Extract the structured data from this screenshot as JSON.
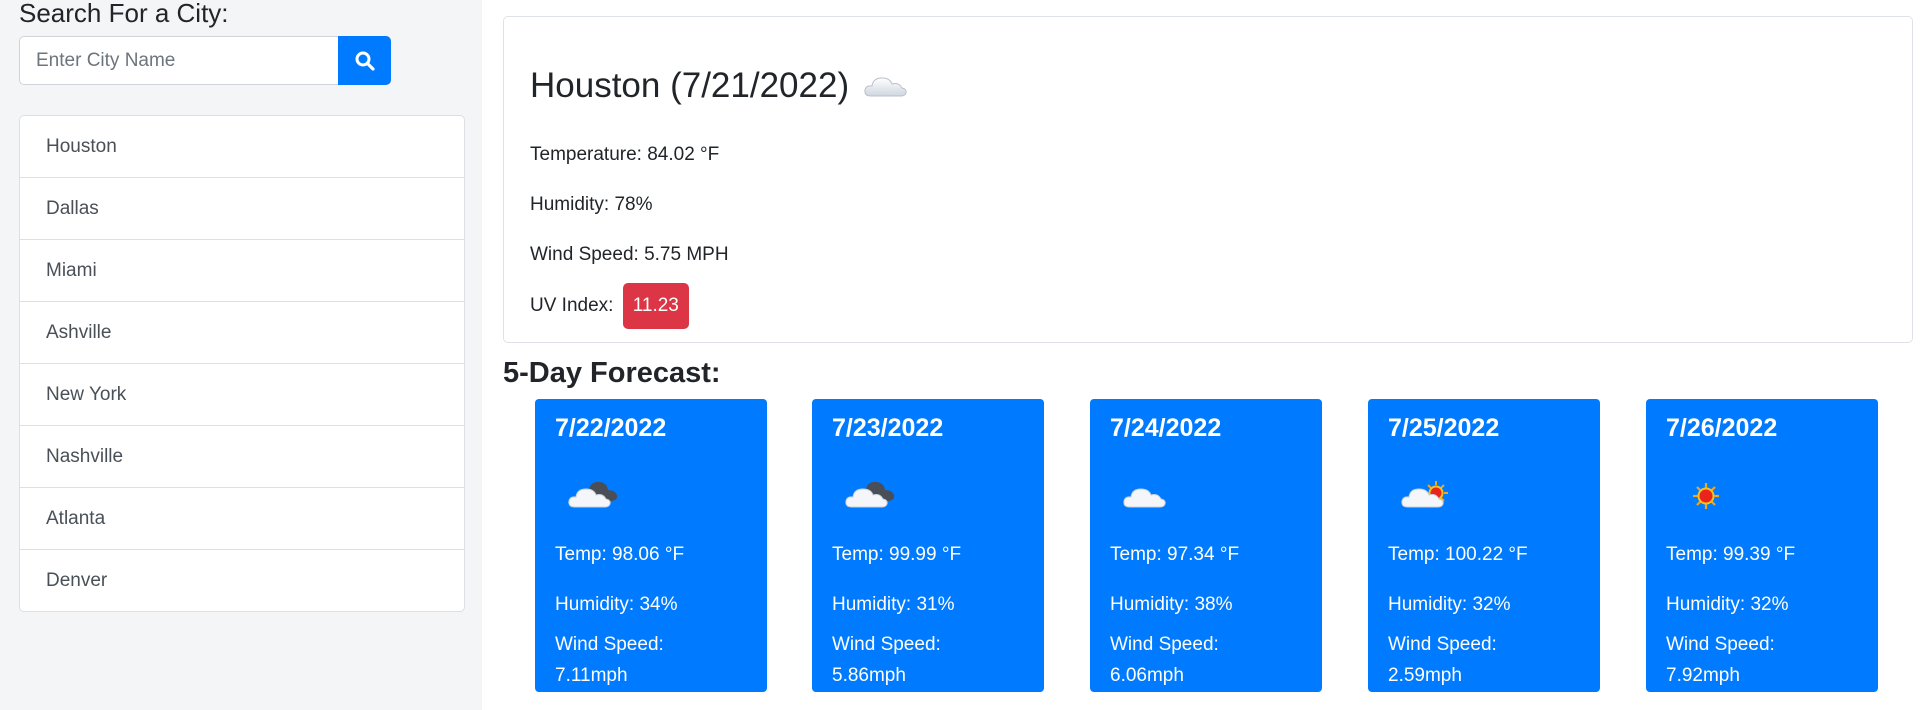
{
  "search": {
    "heading": "Search For a City:",
    "placeholder": "Enter City Name",
    "button_icon": "search-icon"
  },
  "cities": [
    "Houston",
    "Dallas",
    "Miami",
    "Ashville",
    "New York",
    "Nashville",
    "Atlanta",
    "Denver"
  ],
  "current": {
    "title": "Houston (7/21/2022)",
    "icon": "cloud-icon",
    "temperature": "Temperature: 84.02 °F",
    "humidity": "Humidity: 78%",
    "wind": "Wind Speed: 5.75 MPH",
    "uv_label": "UV Index:",
    "uv_value": "11.23",
    "uv_color": "#dc3545"
  },
  "forecast": {
    "heading": "5-Day Forecast:",
    "accent": "#007bff",
    "days": [
      {
        "date": "7/22/2022",
        "icon": "broken-clouds-icon",
        "temp": "Temp: 98.06 °F",
        "humidity": "Humidity: 34%",
        "wind_label": "Wind Speed:",
        "wind_value": "7.11mph"
      },
      {
        "date": "7/23/2022",
        "icon": "broken-clouds-icon",
        "temp": "Temp: 99.99 °F",
        "humidity": "Humidity: 31%",
        "wind_label": "Wind Speed:",
        "wind_value": "5.86mph"
      },
      {
        "date": "7/24/2022",
        "icon": "cloud-icon",
        "temp": "Temp: 97.34 °F",
        "humidity": "Humidity: 38%",
        "wind_label": "Wind Speed:",
        "wind_value": "6.06mph"
      },
      {
        "date": "7/25/2022",
        "icon": "partly-sunny-icon",
        "temp": "Temp: 100.22 °F",
        "humidity": "Humidity: 32%",
        "wind_label": "Wind Speed:",
        "wind_value": "2.59mph"
      },
      {
        "date": "7/26/2022",
        "icon": "sun-icon",
        "temp": "Temp: 99.39 °F",
        "humidity": "Humidity: 32%",
        "wind_label": "Wind Speed:",
        "wind_value": "7.92mph"
      }
    ]
  }
}
